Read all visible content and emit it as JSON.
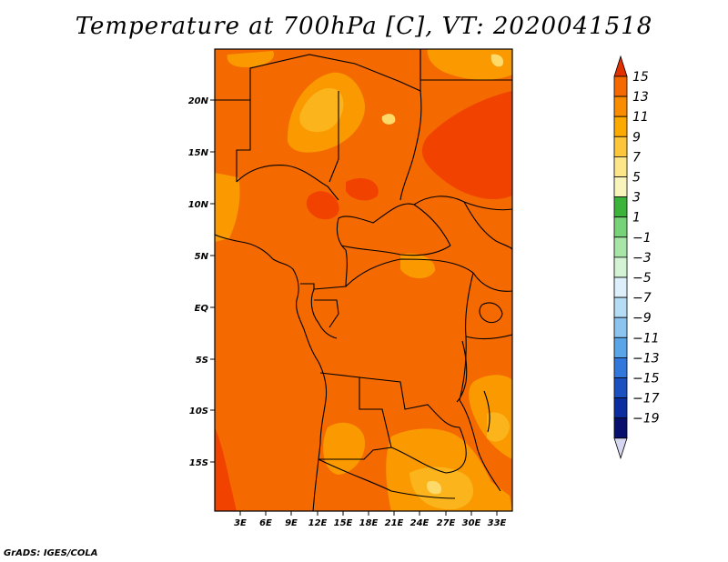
{
  "title": "Temperature at 700hPa [C], VT: 2020041518",
  "credit": "GrADS: IGES/COLA",
  "map": {
    "base_color": "#f46a00",
    "colors": {
      "warm13": "#f24200",
      "mid9": "#fa9a00",
      "mid7": "#fcb41c",
      "light5": "#fdda6a",
      "border": "#000000"
    },
    "lat_labels": [
      "20N",
      "15N",
      "10N",
      "5N",
      "EQ",
      "5S",
      "10S",
      "15S"
    ],
    "lon_labels": [
      "3E",
      "6E",
      "9E",
      "12E",
      "15E",
      "18E",
      "21E",
      "24E",
      "27E",
      "30E",
      "33E"
    ]
  },
  "colorbar": {
    "labels": [
      "15",
      "13",
      "11",
      "9",
      "7",
      "5",
      "3",
      "1",
      "−1",
      "−3",
      "−5",
      "−7",
      "−9",
      "−11",
      "−13",
      "−15",
      "−17",
      "−19"
    ],
    "colors": [
      "#e03000",
      "#f46a00",
      "#fa8c00",
      "#fcaa00",
      "#fcc63c",
      "#fde68a",
      "#f8f4bc",
      "#3cb43c",
      "#78d278",
      "#a8e6a8",
      "#d4f2d4",
      "#dceffa",
      "#b4dcf4",
      "#8cc4f0",
      "#5aa4e8",
      "#3278dc",
      "#1a50c0",
      "#0a2ea0",
      "#08106e",
      "#d6d6f0"
    ]
  }
}
